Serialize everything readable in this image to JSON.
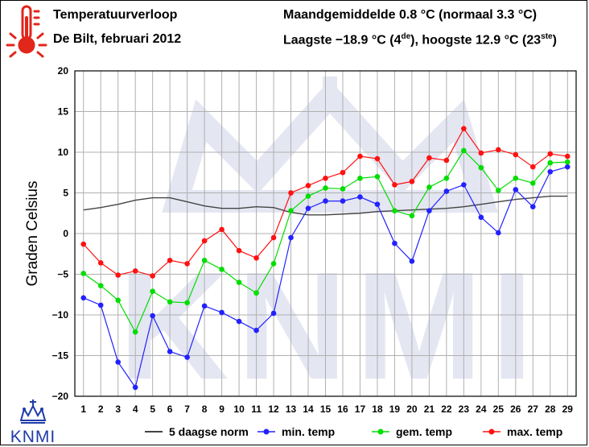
{
  "header": {
    "title": "Temperatuurverloop",
    "subtitle": "De Bilt, februari 2012",
    "avg_line": "Maandgemiddelde 0.8 °C (normaal 3.3 °C)",
    "extremes_prefix": "Laagste −18.9 °C (4",
    "extremes_sup1": "de",
    "extremes_mid": "), hoogste 12.9 °C (23",
    "extremes_sup2": "ste",
    "extremes_suffix": ")"
  },
  "logo": {
    "text": "KNMI",
    "icon": "thermometer-icon"
  },
  "colors": {
    "norm": "#444444",
    "min": "#2222ff",
    "gem": "#00dd00",
    "max": "#ff1111",
    "grid": "#b0b0b0",
    "watermark": "#e4e6f2"
  },
  "chart_data": {
    "type": "line",
    "ylabel": "Graden Celsius",
    "xlabel": "",
    "ylim": [
      -20,
      20
    ],
    "yticks": [
      -20,
      -15,
      -10,
      -5,
      0,
      5,
      10,
      15,
      20
    ],
    "xlim": [
      0.5,
      29.5
    ],
    "grid": true,
    "legend_position": "bottom",
    "x": [
      1,
      2,
      3,
      4,
      5,
      6,
      7,
      8,
      9,
      10,
      11,
      12,
      13,
      14,
      15,
      16,
      17,
      18,
      19,
      20,
      21,
      22,
      23,
      24,
      25,
      26,
      27,
      28,
      29
    ],
    "series": [
      {
        "name": "5 daagse norm",
        "key": "norm",
        "marker": false,
        "values": [
          2.9,
          3.2,
          3.6,
          4.1,
          4.4,
          4.4,
          3.9,
          3.4,
          3.1,
          3.1,
          3.3,
          3.2,
          2.6,
          2.3,
          2.3,
          2.4,
          2.5,
          2.7,
          2.8,
          2.9,
          3.0,
          3.1,
          3.3,
          3.6,
          3.9,
          4.2,
          4.4,
          4.6,
          4.6
        ]
      },
      {
        "name": "min. temp",
        "key": "min",
        "marker": true,
        "values": [
          -7.9,
          -8.8,
          -15.8,
          -18.9,
          -10.1,
          -14.5,
          -15.2,
          -8.9,
          -9.7,
          -10.8,
          -11.9,
          -9.8,
          -0.5,
          3.1,
          4.0,
          4.0,
          4.5,
          3.6,
          -1.2,
          -3.4,
          2.8,
          5.2,
          6.0,
          2.0,
          0.1,
          5.4,
          3.3,
          7.6,
          8.2
        ]
      },
      {
        "name": "gem. temp",
        "key": "gem",
        "marker": true,
        "values": [
          -4.9,
          -6.4,
          -8.2,
          -12.1,
          -7.1,
          -8.4,
          -8.5,
          -3.3,
          -4.4,
          -6.0,
          -7.3,
          -3.7,
          2.8,
          4.6,
          5.6,
          5.5,
          6.8,
          7.0,
          2.8,
          2.2,
          5.7,
          6.8,
          10.2,
          8.1,
          5.3,
          6.8,
          6.2,
          8.7,
          8.8
        ]
      },
      {
        "name": "max. temp",
        "key": "max",
        "marker": true,
        "values": [
          -1.3,
          -3.6,
          -5.1,
          -4.6,
          -5.2,
          -3.3,
          -3.7,
          -0.9,
          0.5,
          -2.1,
          -3.0,
          -0.5,
          5.0,
          5.9,
          6.8,
          7.5,
          9.5,
          9.2,
          6.0,
          6.4,
          9.3,
          9.0,
          12.9,
          9.9,
          10.3,
          9.7,
          8.2,
          9.8,
          9.5
        ]
      }
    ]
  }
}
